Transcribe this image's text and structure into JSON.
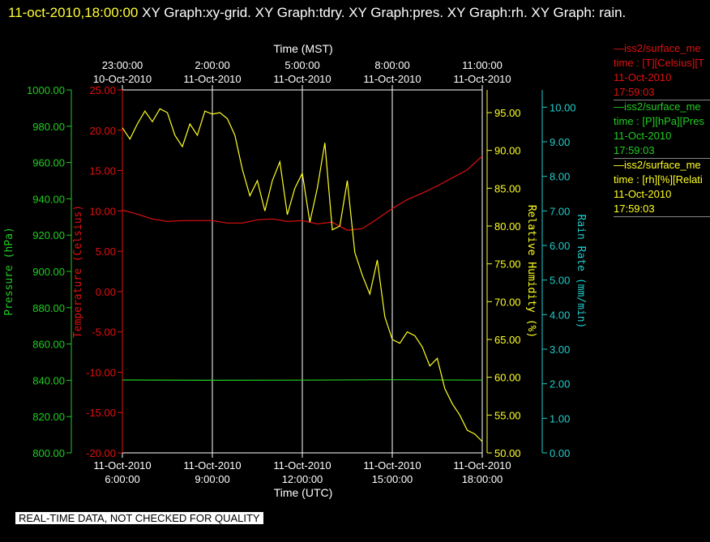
{
  "header": {
    "timestamp": "11-oct-2010,18:00:00",
    "graphs": "XY Graph:xy-grid.  XY Graph:tdry.  XY Graph:pres.  XY Graph:rh.  XY Graph: rain."
  },
  "colors": {
    "temperature": "#e01010",
    "pressure": "#22cc22",
    "humidity": "#ffff22",
    "rain": "#22cccc",
    "grid": "#ffffff"
  },
  "legend": [
    {
      "line1": "—iss2/surface_me",
      "line2": "time : [T][Celsius][T",
      "line3": "11-Oct-2010",
      "line4": "17:59:03",
      "color": "#e01010"
    },
    {
      "line1": "—iss2/surface_me",
      "line2": "time : [P][hPa][Pres",
      "line3": "11-Oct-2010",
      "line4": "17:59:03",
      "color": "#22cc22"
    },
    {
      "line1": "—iss2/surface_me",
      "line2": "time : [rh][%][Relati",
      "line3": "11-Oct-2010",
      "line4": "17:59:03",
      "color": "#ffff22"
    }
  ],
  "footer_note": "REAL-TIME DATA, NOT CHECKED FOR QUALITY",
  "chart_data": {
    "type": "line",
    "xlabel": "Time (UTC)",
    "x2label": "Time (MST)",
    "xlim": [
      6,
      18
    ],
    "x_ticks": [
      {
        "x": 6,
        "line1": "11-Oct-2010",
        "line2": "6:00:00"
      },
      {
        "x": 9,
        "line1": "11-Oct-2010",
        "line2": "9:00:00"
      },
      {
        "x": 12,
        "line1": "11-Oct-2010",
        "line2": "12:00:00"
      },
      {
        "x": 15,
        "line1": "11-Oct-2010",
        "line2": "15:00:00"
      },
      {
        "x": 18,
        "line1": "11-Oct-2010",
        "line2": "18:00:00"
      }
    ],
    "x2_ticks": [
      {
        "x": 6,
        "line1": "23:00:00",
        "line2": "10-Oct-2010"
      },
      {
        "x": 9,
        "line1": "2:00:00",
        "line2": "11-Oct-2010"
      },
      {
        "x": 12,
        "line1": "5:00:00",
        "line2": "11-Oct-2010"
      },
      {
        "x": 15,
        "line1": "8:00:00",
        "line2": "11-Oct-2010"
      },
      {
        "x": 18,
        "line1": "11:00:00",
        "line2": "11-Oct-2010"
      }
    ],
    "axes": {
      "pressure": {
        "label": "Pressure (hPa)",
        "ylim": [
          800,
          1000
        ],
        "ticks": [
          "800.00",
          "820.00",
          "840.00",
          "860.00",
          "880.00",
          "900.00",
          "920.00",
          "940.00",
          "960.00",
          "980.00",
          "1000.00"
        ]
      },
      "temperature": {
        "label": "Temperature (Celsius)",
        "ylim": [
          -20,
          25
        ],
        "ticks": [
          "-20.00",
          "-15.00",
          "-10.00",
          "-5.00",
          "0.00",
          "5.00",
          "10.00",
          "15.00",
          "20.00",
          "25.00"
        ]
      },
      "humidity": {
        "label": "Relative Humidity (%)",
        "ylim": [
          50,
          98
        ],
        "ticks": [
          "50.00",
          "55.00",
          "60.00",
          "65.00",
          "70.00",
          "75.00",
          "80.00",
          "85.00",
          "90.00",
          "95.00"
        ]
      },
      "rain": {
        "label": "Rain Rate (mm/min)",
        "ylim": [
          0,
          10.5
        ],
        "ticks": [
          "0.00",
          "1.00",
          "2.00",
          "3.00",
          "4.00",
          "5.00",
          "6.00",
          "7.00",
          "8.00",
          "9.00",
          "10.00"
        ]
      }
    },
    "series": [
      {
        "key": "temperature",
        "axis": "temperature",
        "x": [
          6.0,
          6.5,
          7.0,
          7.5,
          8.0,
          8.5,
          9.0,
          9.5,
          10.0,
          10.5,
          11.0,
          11.5,
          12.0,
          12.5,
          13.0,
          13.5,
          14.0,
          14.5,
          15.0,
          15.5,
          16.0,
          16.5,
          17.0,
          17.5,
          18.0
        ],
        "y": [
          10.1,
          9.6,
          9.0,
          8.7,
          8.8,
          8.8,
          8.8,
          8.5,
          8.5,
          8.9,
          9.0,
          8.7,
          8.8,
          8.4,
          8.6,
          7.6,
          7.8,
          9.0,
          10.3,
          11.4,
          12.2,
          13.1,
          14.1,
          15.1,
          16.8
        ]
      },
      {
        "key": "pressure",
        "axis": "pressure",
        "x": [
          6.0,
          9.0,
          12.0,
          15.0,
          18.0
        ],
        "y": [
          840.2,
          840.0,
          840.1,
          840.3,
          840.1
        ]
      },
      {
        "key": "humidity",
        "axis": "humidity",
        "x": [
          6.0,
          6.25,
          6.5,
          6.75,
          7.0,
          7.25,
          7.5,
          7.75,
          8.0,
          8.25,
          8.5,
          8.75,
          9.0,
          9.25,
          9.5,
          9.75,
          10.0,
          10.25,
          10.5,
          10.75,
          11.0,
          11.25,
          11.5,
          11.75,
          12.0,
          12.25,
          12.5,
          12.75,
          13.0,
          13.25,
          13.5,
          13.75,
          14.0,
          14.25,
          14.5,
          14.75,
          15.0,
          15.25,
          15.5,
          15.75,
          16.0,
          16.25,
          16.5,
          16.75,
          17.0,
          17.25,
          17.5,
          17.75,
          18.0
        ],
        "y": [
          93.0,
          91.5,
          93.5,
          95.2,
          93.8,
          95.5,
          95.0,
          92.0,
          90.5,
          93.5,
          92.0,
          95.2,
          94.8,
          95.0,
          94.2,
          92.0,
          87.5,
          84.0,
          86.0,
          82.0,
          86.0,
          88.5,
          81.5,
          85.0,
          87.0,
          80.5,
          85.0,
          91.0,
          79.5,
          80.0,
          86.0,
          76.5,
          73.5,
          71.0,
          75.5,
          68.0,
          65.0,
          64.5,
          66.0,
          65.5,
          64.0,
          61.5,
          62.5,
          58.5,
          56.5,
          55.0,
          53.0,
          52.5,
          51.5
        ]
      }
    ],
    "legend_position": "right"
  }
}
